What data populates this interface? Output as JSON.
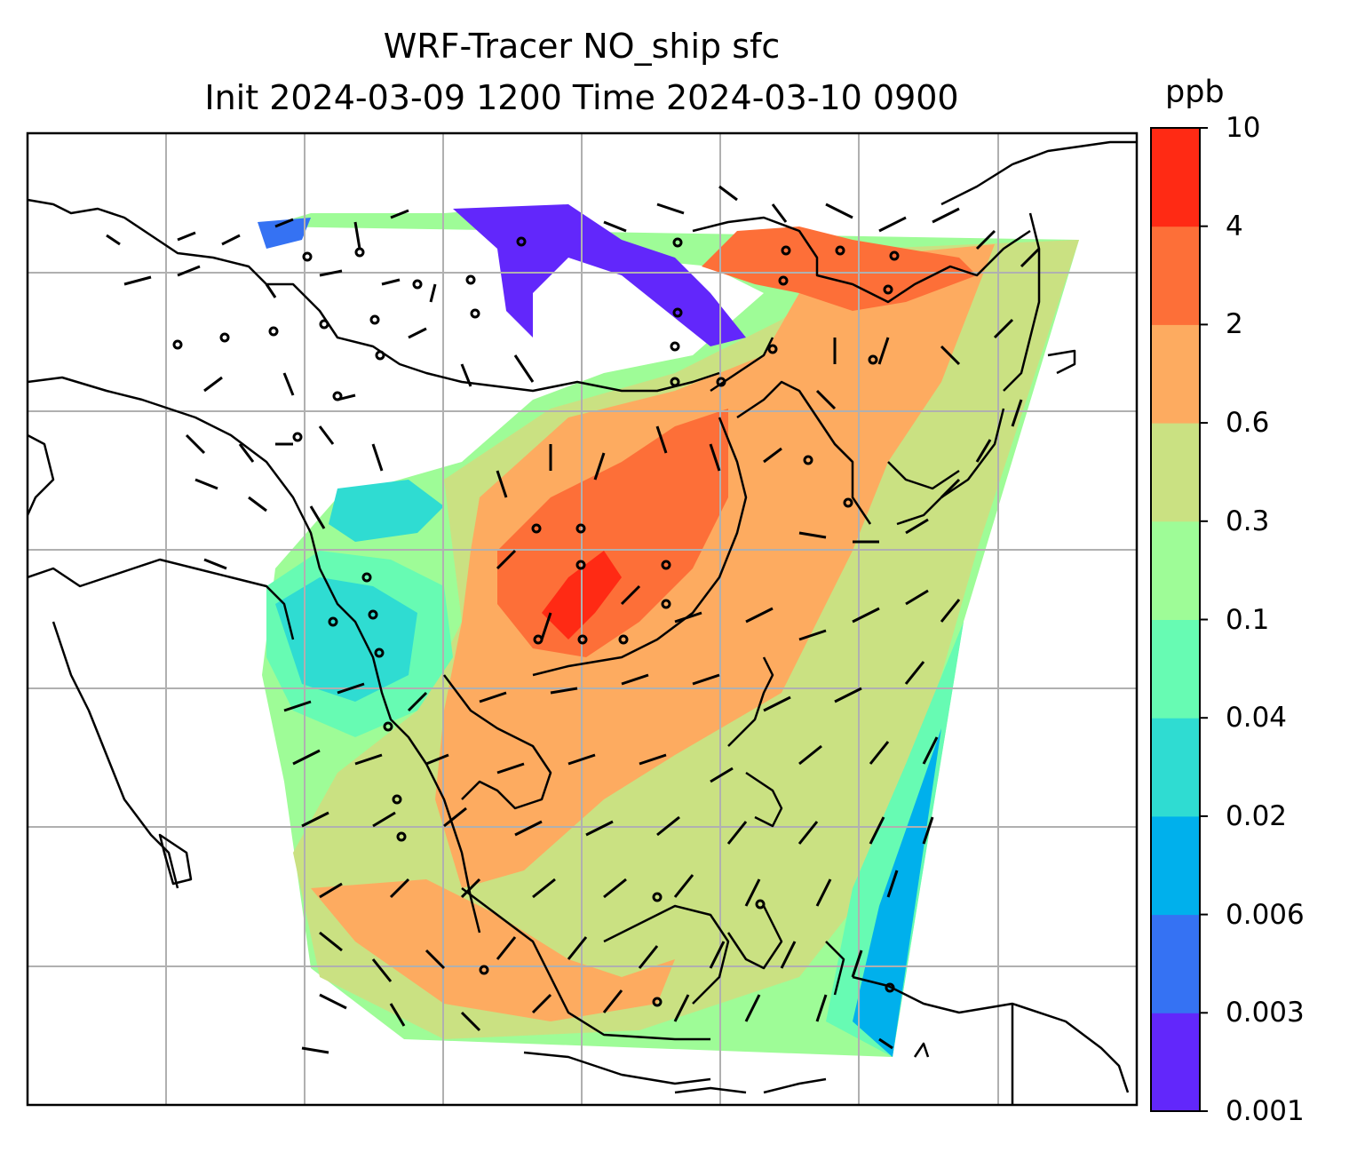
{
  "title_line1": "WRF-Tracer NO_ship sfc",
  "title_line2": "Init 2024-03-09 1200 Time 2024-03-10 0900",
  "colorbar": {
    "unit": "ppb",
    "ticks": [
      "0.001",
      "0.003",
      "0.006",
      "0.02",
      "0.04",
      "0.1",
      "0.3",
      "0.6",
      "2",
      "4",
      "10"
    ],
    "colors": [
      "#6227fb",
      "#3572f3",
      "#00b0ec",
      "#2fdcd2",
      "#67fbb3",
      "#9efc97",
      "#cae182",
      "#fdab60",
      "#fd6f38",
      "#ff2a14"
    ]
  },
  "map": {
    "graticule": "on",
    "coastlines": "on",
    "wind_barbs": "on",
    "field": "NO_ship surface concentration"
  }
}
